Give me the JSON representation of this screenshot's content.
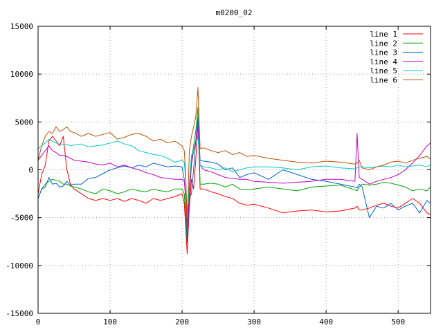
{
  "chart_data": {
    "type": "line",
    "title": "m0200_02",
    "xlabel": "",
    "ylabel": "",
    "xlim": [
      0,
      545
    ],
    "ylim": [
      -15000,
      15000
    ],
    "xticks": [
      0,
      100,
      200,
      300,
      400,
      500
    ],
    "yticks": [
      -15000,
      -10000,
      -5000,
      0,
      5000,
      10000,
      15000
    ],
    "grid": true,
    "legend_position": "top-right",
    "x": [
      0,
      5,
      10,
      15,
      20,
      25,
      30,
      35,
      40,
      45,
      50,
      60,
      70,
      80,
      90,
      100,
      110,
      120,
      130,
      140,
      150,
      160,
      170,
      180,
      190,
      200,
      203,
      205,
      207,
      210,
      213,
      216,
      219,
      222,
      225,
      230,
      240,
      250,
      260,
      270,
      280,
      290,
      300,
      320,
      340,
      360,
      380,
      400,
      420,
      440,
      443,
      446,
      450,
      460,
      470,
      480,
      490,
      500,
      510,
      520,
      530,
      540,
      545
    ],
    "series": [
      {
        "name": "line 1",
        "color": "#ff0000",
        "values": [
          -2500,
          -500,
          500,
          3000,
          3500,
          3000,
          2500,
          3500,
          0,
          -1500,
          -2000,
          -2500,
          -3000,
          -3200,
          -3000,
          -3200,
          -3000,
          -3300,
          -3000,
          -3200,
          -3500,
          -3000,
          -3200,
          -3000,
          -2800,
          -2500,
          -3500,
          -6000,
          -8800,
          -4000,
          -1000,
          -2000,
          1000,
          5000,
          -2000,
          -2000,
          -2300,
          -2500,
          -2800,
          -3000,
          -3500,
          -3700,
          -3600,
          -4000,
          -4500,
          -4300,
          -4200,
          -4400,
          -4300,
          -4000,
          -3800,
          -4200,
          -4200,
          -4000,
          -3700,
          -3500,
          -3800,
          -4000,
          -3500,
          -3000,
          -3500,
          -4500,
          -4700
        ]
      },
      {
        "name": "line 2",
        "color": "#00a000",
        "values": [
          -3000,
          -2000,
          -1500,
          -1200,
          -1000,
          -1100,
          -1200,
          -1500,
          -1500,
          -1700,
          -1800,
          -2000,
          -2300,
          -2500,
          -2000,
          -2200,
          -2500,
          -2300,
          -2000,
          -2200,
          -2300,
          -2000,
          -2200,
          -2300,
          -2000,
          -2000,
          -2500,
          -5000,
          -7600,
          -2000,
          1000,
          2500,
          4000,
          6500,
          -1500,
          -1500,
          -1400,
          -1500,
          -1800,
          -1500,
          -2000,
          -2100,
          -2000,
          -1800,
          -2000,
          -2200,
          -1800,
          -1700,
          -1600,
          -2100,
          -2200,
          -1800,
          -1500,
          -1600,
          -1500,
          -1300,
          -1400,
          -1600,
          -1800,
          -2200,
          -2000,
          -2200,
          -1800
        ]
      },
      {
        "name": "line 3",
        "color": "#0060d0",
        "values": [
          -3000,
          -2000,
          -1800,
          -800,
          -1500,
          -1400,
          -1800,
          -1700,
          -1200,
          -1600,
          -1500,
          -1500,
          -900,
          -800,
          -400,
          0,
          200,
          400,
          200,
          500,
          300,
          700,
          500,
          300,
          400,
          300,
          -1000,
          -3000,
          -7500,
          -3000,
          -2500,
          0,
          3000,
          5500,
          1000,
          900,
          800,
          600,
          0,
          200,
          -800,
          -500,
          -300,
          -1000,
          0,
          -500,
          -1000,
          -1200,
          -1500,
          -1800,
          -1900,
          -1500,
          -1800,
          -5000,
          -3800,
          -4000,
          -3500,
          -4200,
          -3800,
          -3500,
          -4500,
          -3200,
          -3500
        ]
      },
      {
        "name": "line 4",
        "color": "#c000c0",
        "values": [
          1000,
          1500,
          2000,
          2500,
          2000,
          1800,
          1500,
          1500,
          1400,
          1200,
          1000,
          900,
          800,
          600,
          500,
          700,
          300,
          500,
          200,
          0,
          -300,
          -500,
          -800,
          -900,
          -1000,
          -1000,
          -1200,
          -3000,
          -6000,
          -3000,
          500,
          2000,
          3000,
          4500,
          500,
          0,
          -200,
          -500,
          -800,
          -900,
          -1000,
          -1000,
          -1200,
          -1300,
          -1400,
          -1300,
          -1200,
          -1000,
          -1000,
          -1200,
          3800,
          -800,
          -1000,
          -1500,
          -1200,
          -1000,
          -800,
          -500,
          0,
          700,
          1500,
          2500,
          2800
        ]
      },
      {
        "name": "line 5",
        "color": "#00c8c8",
        "values": [
          2200,
          2500,
          2800,
          3200,
          3000,
          2800,
          2700,
          2600,
          2700,
          2500,
          2600,
          2700,
          2400,
          2500,
          2600,
          2800,
          3000,
          2700,
          2500,
          2000,
          1800,
          1600,
          1500,
          1200,
          800,
          1000,
          800,
          -1000,
          -4500,
          -1500,
          1500,
          2000,
          2500,
          3500,
          500,
          300,
          200,
          0,
          200,
          -200,
          0,
          200,
          300,
          300,
          200,
          0,
          300,
          400,
          200,
          100,
          200,
          300,
          300,
          200,
          300,
          400,
          300,
          500,
          300,
          400,
          500,
          300,
          500
        ]
      },
      {
        "name": "line 6",
        "color": "#c05000",
        "values": [
          1000,
          2500,
          3500,
          4000,
          3800,
          4500,
          4000,
          4200,
          4500,
          4000,
          3900,
          3500,
          3800,
          3500,
          3700,
          3900,
          3200,
          3400,
          3700,
          3800,
          3500,
          3000,
          3200,
          2800,
          3000,
          2500,
          2000,
          -500,
          -6500,
          2000,
          3500,
          4500,
          5500,
          8600,
          2200,
          2300,
          2000,
          1800,
          2000,
          1600,
          1800,
          1400,
          1500,
          1200,
          1000,
          800,
          700,
          900,
          800,
          600,
          700,
          1000,
          200,
          0,
          300,
          500,
          800,
          900,
          700,
          1000,
          1200,
          1400,
          1100
        ]
      }
    ]
  }
}
